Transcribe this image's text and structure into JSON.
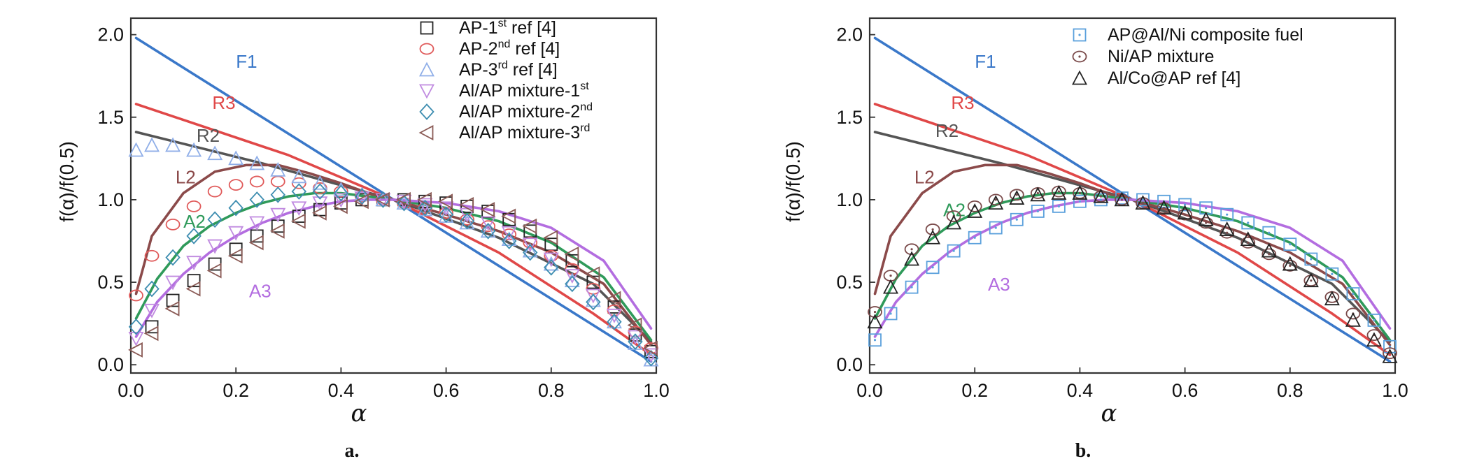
{
  "chart_data": [
    {
      "type": "line",
      "panel_label": "a.",
      "xlabel": "α",
      "ylabel": "f(α)/f(0.5)",
      "xlim": [
        0.0,
        1.0
      ],
      "ylim": [
        -0.05,
        2.1
      ],
      "xticks": [
        "0.0",
        "0.2",
        "0.4",
        "0.6",
        "0.8",
        "1.0"
      ],
      "yticks": [
        "0.0",
        "0.5",
        "1.0",
        "1.5",
        "2.0"
      ],
      "legend_position": "top-right",
      "model_curves": [
        {
          "label": "F1",
          "color": "#3a78c9",
          "x": [
            0.01,
            0.5,
            0.88,
            0.99
          ],
          "y": [
            1.98,
            1.0,
            0.24,
            0.02
          ]
        },
        {
          "label": "R3",
          "color": "#e04848",
          "x": [
            0.01,
            0.3,
            0.5,
            0.7,
            0.88,
            0.99
          ],
          "y": [
            1.58,
            1.27,
            1.0,
            0.68,
            0.31,
            0.06
          ]
        },
        {
          "label": "R2",
          "color": "#555555",
          "x": [
            0.01,
            0.25,
            0.5,
            0.7,
            0.88,
            0.99
          ],
          "y": [
            1.41,
            1.22,
            1.0,
            0.77,
            0.49,
            0.14
          ]
        },
        {
          "label": "L2",
          "color": "#8b4a4a",
          "x": [
            0.01,
            0.04,
            0.1,
            0.16,
            0.22,
            0.28,
            0.34,
            0.4,
            0.46,
            0.5,
            0.6,
            0.7,
            0.8,
            0.9,
            0.99
          ],
          "y": [
            0.43,
            0.78,
            1.04,
            1.17,
            1.21,
            1.21,
            1.16,
            1.1,
            1.03,
            1.0,
            0.91,
            0.81,
            0.68,
            0.49,
            0.12
          ]
        },
        {
          "label": "A2",
          "color": "#2f9a5a",
          "x": [
            0.01,
            0.05,
            0.1,
            0.15,
            0.2,
            0.25,
            0.3,
            0.35,
            0.4,
            0.45,
            0.5,
            0.6,
            0.7,
            0.8,
            0.9,
            0.99
          ],
          "y": [
            0.28,
            0.52,
            0.72,
            0.84,
            0.92,
            0.98,
            1.02,
            1.04,
            1.04,
            1.02,
            1.0,
            0.95,
            0.87,
            0.74,
            0.53,
            0.15
          ]
        },
        {
          "label": "A3",
          "color": "#b36de0",
          "x": [
            0.01,
            0.05,
            0.1,
            0.15,
            0.2,
            0.25,
            0.3,
            0.35,
            0.4,
            0.45,
            0.5,
            0.6,
            0.7,
            0.8,
            0.9,
            0.99
          ],
          "y": [
            0.17,
            0.38,
            0.55,
            0.68,
            0.78,
            0.86,
            0.92,
            0.96,
            0.99,
            1.0,
            1.0,
            0.98,
            0.93,
            0.83,
            0.63,
            0.22
          ]
        }
      ],
      "series": [
        {
          "name": "AP-1st ref [4]",
          "name_base": "AP-1",
          "name_sup": "st",
          "name_tail": " ref [4]",
          "marker": "square",
          "color": "#222222",
          "x": [
            0.04,
            0.08,
            0.12,
            0.16,
            0.2,
            0.24,
            0.28,
            0.32,
            0.36,
            0.4,
            0.44,
            0.48,
            0.52,
            0.56,
            0.6,
            0.64,
            0.68,
            0.72,
            0.76,
            0.8,
            0.84,
            0.88,
            0.92,
            0.96,
            0.99
          ],
          "y": [
            0.23,
            0.39,
            0.51,
            0.61,
            0.7,
            0.78,
            0.84,
            0.9,
            0.94,
            0.98,
            1.0,
            1.0,
            1.0,
            0.99,
            0.98,
            0.96,
            0.93,
            0.88,
            0.81,
            0.73,
            0.63,
            0.5,
            0.35,
            0.18,
            0.08
          ]
        },
        {
          "name": "AP-2nd ref [4]",
          "name_base": "AP-2",
          "name_sup": "nd",
          "name_tail": " ref [4]",
          "marker": "circle",
          "color": "#e05a5a",
          "x": [
            0.01,
            0.04,
            0.08,
            0.12,
            0.16,
            0.2,
            0.24,
            0.28,
            0.32,
            0.36,
            0.4,
            0.44,
            0.48,
            0.52,
            0.56,
            0.6,
            0.64,
            0.68,
            0.72,
            0.76,
            0.8,
            0.84,
            0.88,
            0.92,
            0.96,
            0.99
          ],
          "y": [
            0.42,
            0.66,
            0.85,
            0.96,
            1.05,
            1.09,
            1.11,
            1.11,
            1.1,
            1.07,
            1.05,
            1.02,
            1.0,
            0.98,
            0.95,
            0.92,
            0.88,
            0.84,
            0.79,
            0.74,
            0.66,
            0.58,
            0.46,
            0.33,
            0.2,
            0.1
          ]
        },
        {
          "name": "AP-3rd ref [4]",
          "name_base": "AP-3",
          "name_sup": "rd",
          "name_tail": " ref [4]",
          "marker": "triangle-up",
          "color": "#8faee8",
          "x": [
            0.01,
            0.04,
            0.08,
            0.12,
            0.16,
            0.2,
            0.24,
            0.28,
            0.32,
            0.36,
            0.4,
            0.44,
            0.48,
            0.52,
            0.56,
            0.6,
            0.64,
            0.68,
            0.72,
            0.76,
            0.8,
            0.84,
            0.88,
            0.92,
            0.96,
            0.99
          ],
          "y": [
            1.3,
            1.33,
            1.33,
            1.3,
            1.28,
            1.25,
            1.22,
            1.18,
            1.14,
            1.1,
            1.06,
            1.03,
            1.0,
            0.98,
            0.94,
            0.9,
            0.86,
            0.81,
            0.76,
            0.69,
            0.61,
            0.51,
            0.39,
            0.26,
            0.13,
            0.03
          ]
        },
        {
          "name": "Al/AP mixture-1st",
          "name_base": "Al/AP mixture-1",
          "name_sup": "st",
          "name_tail": "",
          "marker": "triangle-down",
          "color": "#c08ae0",
          "x": [
            0.01,
            0.04,
            0.08,
            0.12,
            0.16,
            0.2,
            0.24,
            0.28,
            0.32,
            0.36,
            0.4,
            0.44,
            0.48,
            0.52,
            0.56,
            0.6,
            0.64,
            0.68,
            0.72,
            0.76,
            0.8,
            0.84,
            0.88,
            0.92,
            0.96,
            0.99
          ],
          "y": [
            0.16,
            0.33,
            0.5,
            0.62,
            0.72,
            0.8,
            0.86,
            0.91,
            0.95,
            0.98,
            1.0,
            1.01,
            1.0,
            0.99,
            0.97,
            0.95,
            0.91,
            0.86,
            0.8,
            0.73,
            0.64,
            0.54,
            0.42,
            0.3,
            0.17,
            0.06
          ]
        },
        {
          "name": "Al/AP mixture-2nd",
          "name_base": "Al/AP mixture-2",
          "name_sup": "nd",
          "name_tail": "",
          "marker": "diamond",
          "color": "#3d8db0",
          "x": [
            0.01,
            0.04,
            0.08,
            0.12,
            0.16,
            0.2,
            0.24,
            0.28,
            0.32,
            0.36,
            0.4,
            0.44,
            0.48,
            0.52,
            0.56,
            0.6,
            0.64,
            0.68,
            0.72,
            0.76,
            0.8,
            0.84,
            0.88,
            0.92,
            0.96,
            0.99
          ],
          "y": [
            0.23,
            0.46,
            0.65,
            0.78,
            0.88,
            0.95,
            1.0,
            1.03,
            1.05,
            1.05,
            1.04,
            1.02,
            1.0,
            0.98,
            0.95,
            0.91,
            0.87,
            0.81,
            0.75,
            0.68,
            0.59,
            0.49,
            0.38,
            0.26,
            0.14,
            0.04
          ]
        },
        {
          "name": "Al/AP mixture-3rd",
          "name_base": "Al/AP mixture-3",
          "name_sup": "rd",
          "name_tail": "",
          "marker": "triangle-left",
          "color": "#8a5a55",
          "x": [
            0.01,
            0.04,
            0.08,
            0.12,
            0.16,
            0.2,
            0.24,
            0.28,
            0.32,
            0.36,
            0.4,
            0.44,
            0.48,
            0.52,
            0.56,
            0.6,
            0.64,
            0.68,
            0.72,
            0.76,
            0.8,
            0.84,
            0.88,
            0.92,
            0.96,
            0.99
          ],
          "y": [
            0.09,
            0.19,
            0.34,
            0.46,
            0.57,
            0.66,
            0.74,
            0.81,
            0.87,
            0.92,
            0.96,
            0.99,
            1.0,
            1.0,
            1.0,
            0.99,
            0.97,
            0.94,
            0.9,
            0.84,
            0.77,
            0.67,
            0.55,
            0.4,
            0.24,
            0.1
          ]
        }
      ]
    },
    {
      "type": "line",
      "panel_label": "b.",
      "xlabel": "α",
      "ylabel": "f(α)/f(0.5)",
      "xlim": [
        0.0,
        1.0
      ],
      "ylim": [
        -0.05,
        2.1
      ],
      "xticks": [
        "0.0",
        "0.2",
        "0.4",
        "0.6",
        "0.8",
        "1.0"
      ],
      "yticks": [
        "0.0",
        "0.5",
        "1.0",
        "1.5",
        "2.0"
      ],
      "legend_position": "top-center",
      "model_curves": [
        {
          "label": "F1",
          "color": "#3a78c9",
          "x": [
            0.01,
            0.5,
            0.88,
            0.99
          ],
          "y": [
            1.98,
            1.0,
            0.24,
            0.02
          ]
        },
        {
          "label": "R3",
          "color": "#e04848",
          "x": [
            0.01,
            0.3,
            0.5,
            0.7,
            0.88,
            0.99
          ],
          "y": [
            1.58,
            1.27,
            1.0,
            0.68,
            0.31,
            0.06
          ]
        },
        {
          "label": "R2",
          "color": "#555555",
          "x": [
            0.01,
            0.25,
            0.5,
            0.7,
            0.88,
            0.99
          ],
          "y": [
            1.41,
            1.22,
            1.0,
            0.77,
            0.49,
            0.14
          ]
        },
        {
          "label": "L2",
          "color": "#8b4a4a",
          "x": [
            0.01,
            0.04,
            0.1,
            0.16,
            0.22,
            0.28,
            0.34,
            0.4,
            0.46,
            0.5,
            0.6,
            0.7,
            0.8,
            0.9,
            0.99
          ],
          "y": [
            0.43,
            0.78,
            1.04,
            1.17,
            1.21,
            1.21,
            1.16,
            1.1,
            1.03,
            1.0,
            0.91,
            0.81,
            0.68,
            0.49,
            0.12
          ]
        },
        {
          "label": "A2",
          "color": "#2f9a5a",
          "x": [
            0.01,
            0.05,
            0.1,
            0.15,
            0.2,
            0.25,
            0.3,
            0.35,
            0.4,
            0.45,
            0.5,
            0.6,
            0.7,
            0.8,
            0.9,
            0.99
          ],
          "y": [
            0.28,
            0.52,
            0.72,
            0.84,
            0.92,
            0.98,
            1.02,
            1.04,
            1.04,
            1.02,
            1.0,
            0.95,
            0.87,
            0.74,
            0.53,
            0.15
          ]
        },
        {
          "label": "A3",
          "color": "#b36de0",
          "x": [
            0.01,
            0.05,
            0.1,
            0.15,
            0.2,
            0.25,
            0.3,
            0.35,
            0.4,
            0.45,
            0.5,
            0.6,
            0.7,
            0.8,
            0.9,
            0.99
          ],
          "y": [
            0.17,
            0.38,
            0.55,
            0.68,
            0.78,
            0.86,
            0.92,
            0.96,
            0.99,
            1.0,
            1.0,
            0.98,
            0.93,
            0.83,
            0.63,
            0.22
          ]
        }
      ],
      "series": [
        {
          "name": "AP@Al/Ni composite fuel",
          "name_base": "AP@Al/Ni composite fuel",
          "name_sup": "",
          "name_tail": "",
          "marker": "square-dot",
          "color": "#5aa0dc",
          "x": [
            0.01,
            0.04,
            0.08,
            0.12,
            0.16,
            0.2,
            0.24,
            0.28,
            0.32,
            0.36,
            0.4,
            0.44,
            0.48,
            0.52,
            0.56,
            0.6,
            0.64,
            0.68,
            0.72,
            0.76,
            0.8,
            0.84,
            0.88,
            0.92,
            0.96,
            0.99
          ],
          "y": [
            0.15,
            0.31,
            0.47,
            0.59,
            0.69,
            0.77,
            0.83,
            0.88,
            0.93,
            0.96,
            0.99,
            1.0,
            1.01,
            1.0,
            0.99,
            0.97,
            0.95,
            0.91,
            0.86,
            0.8,
            0.73,
            0.64,
            0.55,
            0.43,
            0.27,
            0.11
          ]
        },
        {
          "name": "Ni/AP mixture",
          "name_base": "Ni/AP mixture",
          "name_sup": "",
          "name_tail": "",
          "marker": "circle-dot",
          "color": "#7a4a4a",
          "x": [
            0.01,
            0.04,
            0.08,
            0.12,
            0.16,
            0.2,
            0.24,
            0.28,
            0.32,
            0.36,
            0.4,
            0.44,
            0.48,
            0.52,
            0.56,
            0.6,
            0.64,
            0.68,
            0.72,
            0.76,
            0.8,
            0.84,
            0.88,
            0.92,
            0.96,
            0.99
          ],
          "y": [
            0.32,
            0.54,
            0.7,
            0.82,
            0.9,
            0.96,
            1.0,
            1.03,
            1.04,
            1.05,
            1.04,
            1.02,
            1.0,
            0.98,
            0.95,
            0.91,
            0.86,
            0.8,
            0.74,
            0.67,
            0.6,
            0.51,
            0.41,
            0.31,
            0.18,
            0.07
          ]
        },
        {
          "name": "Al/Co@AP ref [4]",
          "name_base": "Al/Co@AP ref [4]",
          "name_sup": "",
          "name_tail": "",
          "marker": "triangle-up",
          "color": "#222222",
          "x": [
            0.01,
            0.04,
            0.08,
            0.12,
            0.16,
            0.2,
            0.24,
            0.28,
            0.32,
            0.36,
            0.4,
            0.44,
            0.48,
            0.52,
            0.56,
            0.6,
            0.64,
            0.68,
            0.72,
            0.76,
            0.8,
            0.84,
            0.88,
            0.92,
            0.96,
            0.99
          ],
          "y": [
            0.26,
            0.47,
            0.64,
            0.77,
            0.86,
            0.93,
            0.98,
            1.01,
            1.03,
            1.04,
            1.04,
            1.02,
            1.0,
            0.98,
            0.95,
            0.92,
            0.88,
            0.82,
            0.76,
            0.69,
            0.61,
            0.51,
            0.4,
            0.27,
            0.15,
            0.05
          ]
        }
      ]
    }
  ]
}
